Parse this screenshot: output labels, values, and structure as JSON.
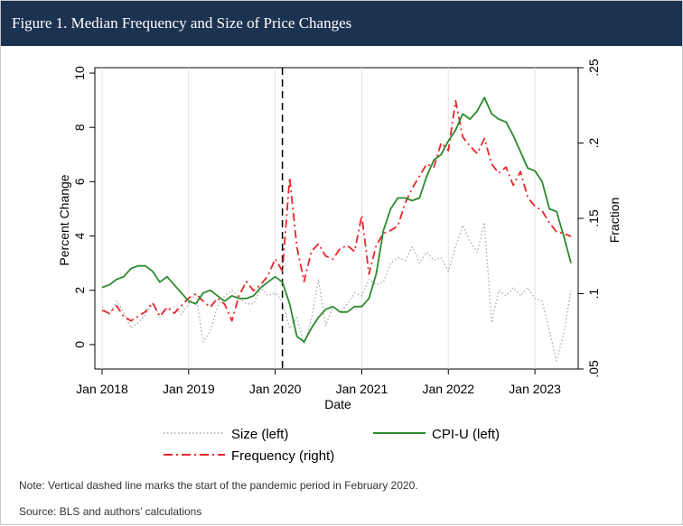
{
  "header": {
    "title": "Figure 1. Median Frequency and Size of Price Changes"
  },
  "footer": {
    "note": "Note: Vertical dashed line marks the start of the pandemic period in February 2020.",
    "source": "Source: BLS and authors’ calculations"
  },
  "chart_data": {
    "type": "line",
    "xlabel": "Date",
    "ylabel_left": "Percent Change",
    "ylabel_right": "Fraction",
    "x_ticks": [
      "Jan 2018",
      "Jan 2019",
      "Jan 2020",
      "Jan 2021",
      "Jan 2022",
      "Jan 2023"
    ],
    "y_left_ticks": [
      "0",
      "2",
      "4",
      "6",
      "8",
      "10"
    ],
    "y_right_ticks": [
      ".05",
      ".1",
      ".15",
      ".2",
      ".25"
    ],
    "ylim_left": [
      -0.9,
      10.2
    ],
    "ylim_right": [
      0.05,
      0.25
    ],
    "xlim": [
      "2017-12",
      "2023-07"
    ],
    "vline": "2020-02",
    "legend": {
      "position": "bottom",
      "items": [
        {
          "name": "Size (left)",
          "color": "#a9a9a9",
          "style": "dotted"
        },
        {
          "name": "CPI-U (left)",
          "color": "#2b8a2b",
          "style": "solid"
        },
        {
          "name": "Frequency (right)",
          "color": "#e8262b",
          "style": "dash-dot"
        }
      ]
    },
    "series": [
      {
        "name": "Size (left)",
        "axis": "left",
        "color": "#a9a9a9",
        "x": [
          "2018-01",
          "2018-02",
          "2018-03",
          "2018-04",
          "2018-05",
          "2018-06",
          "2018-07",
          "2018-08",
          "2018-09",
          "2018-10",
          "2018-11",
          "2018-12",
          "2019-01",
          "2019-02",
          "2019-03",
          "2019-04",
          "2019-05",
          "2019-06",
          "2019-07",
          "2019-08",
          "2019-09",
          "2019-10",
          "2019-11",
          "2019-12",
          "2020-01",
          "2020-02",
          "2020-03",
          "2020-04",
          "2020-05",
          "2020-06",
          "2020-07",
          "2020-08",
          "2020-09",
          "2020-10",
          "2020-11",
          "2020-12",
          "2021-01",
          "2021-02",
          "2021-03",
          "2021-04",
          "2021-05",
          "2021-06",
          "2021-07",
          "2021-08",
          "2021-09",
          "2021-10",
          "2021-11",
          "2021-12",
          "2022-01",
          "2022-02",
          "2022-03",
          "2022-04",
          "2022-05",
          "2022-06",
          "2022-07",
          "2022-08",
          "2022-09",
          "2022-10",
          "2022-11",
          "2022-12",
          "2023-01",
          "2023-02",
          "2023-03",
          "2023-04",
          "2023-05",
          "2023-06"
        ],
        "values": [
          1.4,
          1.1,
          1.6,
          1.2,
          0.6,
          0.8,
          1.1,
          1.5,
          1.0,
          1.3,
          1.4,
          1.1,
          1.5,
          1.9,
          0.1,
          0.5,
          1.4,
          1.8,
          2.0,
          1.7,
          1.5,
          1.5,
          2.1,
          1.8,
          1.9,
          1.6,
          0.6,
          1.0,
          0.0,
          0.9,
          2.4,
          0.7,
          1.4,
          1.2,
          1.5,
          1.9,
          1.8,
          2.4,
          2.2,
          2.3,
          3.0,
          3.2,
          3.1,
          3.6,
          3.0,
          3.4,
          3.1,
          3.2,
          2.7,
          3.6,
          4.4,
          3.8,
          3.4,
          4.5,
          0.8,
          2.0,
          1.8,
          2.1,
          1.8,
          2.1,
          1.7,
          1.6,
          0.5,
          -0.6,
          0.4,
          2.0
        ]
      },
      {
        "name": "Frequency (right)",
        "axis": "right",
        "color": "#e8262b",
        "x": [
          "2018-01",
          "2018-02",
          "2018-03",
          "2018-04",
          "2018-05",
          "2018-06",
          "2018-07",
          "2018-08",
          "2018-09",
          "2018-10",
          "2018-11",
          "2018-12",
          "2019-01",
          "2019-02",
          "2019-03",
          "2019-04",
          "2019-05",
          "2019-06",
          "2019-07",
          "2019-08",
          "2019-09",
          "2019-10",
          "2019-11",
          "2019-12",
          "2020-01",
          "2020-02",
          "2020-03",
          "2020-04",
          "2020-05",
          "2020-06",
          "2020-07",
          "2020-08",
          "2020-09",
          "2020-10",
          "2020-11",
          "2020-12",
          "2021-01",
          "2021-02",
          "2021-03",
          "2021-04",
          "2021-05",
          "2021-06",
          "2021-07",
          "2021-08",
          "2021-09",
          "2021-10",
          "2021-11",
          "2021-12",
          "2022-01",
          "2022-02",
          "2022-03",
          "2022-04",
          "2022-05",
          "2022-06",
          "2022-07",
          "2022-08",
          "2022-09",
          "2022-10",
          "2022-11",
          "2022-12",
          "2023-01",
          "2023-02",
          "2023-03",
          "2023-04",
          "2023-05",
          "2023-06"
        ],
        "values": [
          0.089,
          0.087,
          0.092,
          0.085,
          0.082,
          0.085,
          0.088,
          0.094,
          0.085,
          0.091,
          0.087,
          0.092,
          0.097,
          0.1,
          0.095,
          0.091,
          0.097,
          0.093,
          0.082,
          0.099,
          0.108,
          0.102,
          0.106,
          0.112,
          0.123,
          0.115,
          0.177,
          0.131,
          0.108,
          0.128,
          0.133,
          0.125,
          0.123,
          0.13,
          0.132,
          0.128,
          0.152,
          0.113,
          0.132,
          0.14,
          0.142,
          0.145,
          0.16,
          0.17,
          0.178,
          0.186,
          0.184,
          0.2,
          0.195,
          0.228,
          0.204,
          0.198,
          0.193,
          0.203,
          0.186,
          0.18,
          0.184,
          0.172,
          0.181,
          0.164,
          0.158,
          0.155,
          0.147,
          0.141,
          0.14,
          0.138
        ]
      },
      {
        "name": "CPI-U (left)",
        "axis": "left",
        "color": "#2b8a2b",
        "x": [
          "2018-01",
          "2018-02",
          "2018-03",
          "2018-04",
          "2018-05",
          "2018-06",
          "2018-07",
          "2018-08",
          "2018-09",
          "2018-10",
          "2018-11",
          "2018-12",
          "2019-01",
          "2019-02",
          "2019-03",
          "2019-04",
          "2019-05",
          "2019-06",
          "2019-07",
          "2019-08",
          "2019-09",
          "2019-10",
          "2019-11",
          "2019-12",
          "2020-01",
          "2020-02",
          "2020-03",
          "2020-04",
          "2020-05",
          "2020-06",
          "2020-07",
          "2020-08",
          "2020-09",
          "2020-10",
          "2020-11",
          "2020-12",
          "2021-01",
          "2021-02",
          "2021-03",
          "2021-04",
          "2021-05",
          "2021-06",
          "2021-07",
          "2021-08",
          "2021-09",
          "2021-10",
          "2021-11",
          "2021-12",
          "2022-01",
          "2022-02",
          "2022-03",
          "2022-04",
          "2022-05",
          "2022-06",
          "2022-07",
          "2022-08",
          "2022-09",
          "2022-10",
          "2022-11",
          "2022-12",
          "2023-01",
          "2023-02",
          "2023-03",
          "2023-04",
          "2023-05",
          "2023-06"
        ],
        "values": [
          2.1,
          2.2,
          2.4,
          2.5,
          2.8,
          2.9,
          2.9,
          2.7,
          2.3,
          2.5,
          2.2,
          1.9,
          1.6,
          1.5,
          1.9,
          2.0,
          1.8,
          1.6,
          1.8,
          1.7,
          1.7,
          1.8,
          2.1,
          2.3,
          2.5,
          2.3,
          1.5,
          0.3,
          0.1,
          0.6,
          1.0,
          1.3,
          1.4,
          1.2,
          1.2,
          1.4,
          1.4,
          1.7,
          2.6,
          4.2,
          5.0,
          5.4,
          5.4,
          5.3,
          5.4,
          6.2,
          6.8,
          7.0,
          7.5,
          7.9,
          8.5,
          8.3,
          8.6,
          9.1,
          8.5,
          8.3,
          8.2,
          7.7,
          7.1,
          6.5,
          6.4,
          6.0,
          5.0,
          4.9,
          4.0,
          3.0
        ]
      }
    ]
  }
}
